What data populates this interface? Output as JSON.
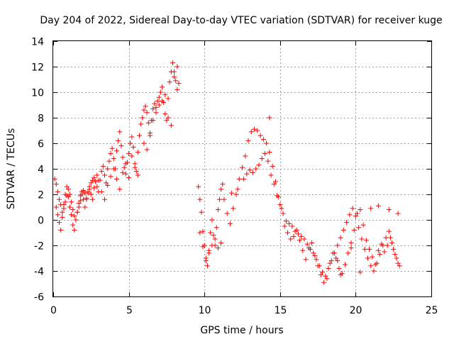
{
  "chart_data": {
    "type": "scatter",
    "title": "Day 204 of 2022, Sidereal Day-to-day VTEC variation (SDTVAR) for receiver kuge",
    "xlabel": "GPS time / hours",
    "ylabel": "SDTVAR / TECUs",
    "xlim": [
      0,
      25
    ],
    "ylim": [
      -6,
      14
    ],
    "grid": true,
    "marker": "+",
    "color": "#ff0000",
    "x_ticks": [
      0,
      5,
      10,
      15,
      20,
      25
    ],
    "y_ticks": [
      -6,
      -4,
      -2,
      0,
      2,
      4,
      6,
      8,
      10,
      12,
      14
    ],
    "series": [
      {
        "name": "SDTVAR",
        "x": [
          0.1,
          0.2,
          0.3,
          0.4,
          0.5,
          0.6,
          0.7,
          0.8,
          0.9,
          1.0,
          1.1,
          1.2,
          1.3,
          1.4,
          1.5,
          1.6,
          1.7,
          1.8,
          1.9,
          2.0,
          2.1,
          2.2,
          2.3,
          2.4,
          2.5,
          2.6,
          2.7,
          2.8,
          2.9,
          3.0,
          3.1,
          3.2,
          3.3,
          3.4,
          3.5,
          3.6,
          3.7,
          3.8,
          3.9,
          4.0,
          4.1,
          4.2,
          4.3,
          4.4,
          4.5,
          4.6,
          4.7,
          4.8,
          4.9,
          5.0,
          5.1,
          5.2,
          5.3,
          5.4,
          5.5,
          5.6,
          5.7,
          5.8,
          5.9,
          6.0,
          6.1,
          6.2,
          6.3,
          6.4,
          6.5,
          6.6,
          6.7,
          6.8,
          6.9,
          7.0,
          7.1,
          7.2,
          7.3,
          7.4,
          7.5,
          7.6,
          7.7,
          7.8,
          7.9,
          8.0,
          8.1,
          8.2,
          8.3,
          0.2,
          0.3,
          0.4,
          0.5,
          0.6,
          0.7,
          0.8,
          0.9,
          1.0,
          1.1,
          1.2,
          1.3,
          1.4,
          1.5,
          1.6,
          1.7,
          1.8,
          1.9,
          2.0,
          2.1,
          2.2,
          2.3,
          2.4,
          2.5,
          2.6,
          2.7,
          2.8,
          2.9,
          3.0,
          3.2,
          3.4,
          3.6,
          3.8,
          4.0,
          4.2,
          4.4,
          4.6,
          4.8,
          5.0,
          5.2,
          5.4,
          5.6,
          6.0,
          6.2,
          6.4,
          6.6,
          6.8,
          7.0,
          7.2,
          7.4,
          7.6,
          7.8,
          8.0,
          8.2,
          9.6,
          9.7,
          9.8,
          9.9,
          10.0,
          10.1,
          10.2,
          10.3,
          10.4,
          10.5,
          10.6,
          10.7,
          10.8,
          10.9,
          11.0,
          11.1,
          11.2,
          11.3,
          11.5,
          11.7,
          11.9,
          12.1,
          12.3,
          12.5,
          12.7,
          12.9,
          13.1,
          13.3,
          13.5,
          13.7,
          13.9,
          14.1,
          14.3,
          14.5,
          14.7,
          14.9,
          15.1,
          15.3,
          15.5,
          15.7,
          15.9,
          16.1,
          16.3,
          16.5,
          16.7,
          16.9,
          17.1,
          17.3,
          17.5,
          17.7,
          17.9,
          18.1,
          18.3,
          18.5,
          18.7,
          18.9,
          19.1,
          19.3,
          19.5,
          19.7,
          19.9,
          20.1,
          20.3,
          20.5,
          20.7,
          20.9,
          21.1,
          21.3,
          21.5,
          21.7,
          21.9,
          22.1,
          22.3,
          22.5,
          22.7,
          22.9,
          9.7,
          9.9,
          10.1,
          10.3,
          10.5,
          10.7,
          10.9,
          11.1,
          12.6,
          12.8,
          13.0,
          13.2,
          13.4,
          13.6,
          13.8,
          14.0,
          14.2,
          14.4,
          14.6,
          14.8,
          15.0,
          15.2,
          15.4,
          15.6,
          15.8,
          16.0,
          16.2,
          16.4,
          16.6,
          16.8,
          17.0,
          17.2,
          17.4,
          17.6,
          17.8,
          18.0,
          18.2,
          18.4,
          18.6,
          18.8,
          19.0,
          19.2,
          19.4,
          19.6,
          19.8,
          20.0,
          20.2,
          20.4,
          20.6,
          20.8,
          21.0,
          21.2,
          21.4,
          21.6,
          21.8,
          22.0,
          22.2,
          22.4,
          22.6,
          22.8,
          14.3,
          12.2,
          11.8,
          18.8,
          19.0,
          20.3,
          21.0,
          22.2,
          22.8,
          21.5,
          19.7
        ],
        "y": [
          3.2,
          2.8,
          2.2,
          1.6,
          1.2,
          0.6,
          0.9,
          1.4,
          1.9,
          2.4,
          2.0,
          1.4,
          0.8,
          0.3,
          0.0,
          0.6,
          1.0,
          1.5,
          2.0,
          2.3,
          2.1,
          1.7,
          2.2,
          2.6,
          2.9,
          3.1,
          3.3,
          3.0,
          2.6,
          2.2,
          3.1,
          3.8,
          4.2,
          3.5,
          2.9,
          4.0,
          4.6,
          5.2,
          5.6,
          4.8,
          4.0,
          5.4,
          6.2,
          6.9,
          5.8,
          4.9,
          4.1,
          3.6,
          4.5,
          5.2,
          6.0,
          6.5,
          5.7,
          4.4,
          3.8,
          5.3,
          6.6,
          7.5,
          8.0,
          8.6,
          8.9,
          8.4,
          7.6,
          6.8,
          7.8,
          8.7,
          9.1,
          8.8,
          9.3,
          9.6,
          10.0,
          10.4,
          9.2,
          8.3,
          7.8,
          9.5,
          10.8,
          11.6,
          12.3,
          11.6,
          10.9,
          10.2,
          10.7,
          1.0,
          0.4,
          -0.2,
          -0.8,
          0.2,
          1.2,
          2.0,
          2.6,
          1.8,
          1.0,
          0.4,
          -0.4,
          -0.8,
          0.0,
          0.6,
          1.3,
          1.9,
          2.2,
          1.6,
          1.0,
          1.6,
          2.1,
          2.4,
          2.0,
          1.6,
          2.5,
          3.0,
          3.5,
          3.1,
          2.2,
          1.6,
          2.7,
          3.4,
          4.0,
          3.2,
          2.4,
          3.7,
          4.4,
          3.3,
          5.0,
          4.1,
          3.5,
          6.0,
          5.5,
          6.6,
          7.8,
          8.4,
          9.0,
          9.3,
          9.8,
          8.0,
          7.4,
          11.2,
          12.0,
          2.6,
          1.6,
          0.6,
          -0.9,
          -2.0,
          -3.2,
          -3.6,
          -2.4,
          -1.0,
          0.0,
          -1.2,
          -2.0,
          -0.6,
          0.8,
          1.6,
          2.4,
          2.8,
          1.6,
          0.5,
          -0.3,
          0.9,
          2.0,
          3.2,
          4.1,
          5.0,
          6.2,
          6.9,
          7.1,
          7.0,
          6.6,
          6.3,
          6.0,
          5.3,
          4.2,
          3.0,
          1.8,
          0.9,
          -0.5,
          -1.0,
          -1.5,
          -1.3,
          -0.8,
          -1.6,
          -2.4,
          -3.1,
          -2.2,
          -1.8,
          -2.8,
          -3.6,
          -4.3,
          -4.9,
          -4.6,
          -3.4,
          -2.6,
          -3.0,
          -3.8,
          -4.2,
          -3.5,
          -2.6,
          -1.8,
          -0.8,
          0.5,
          0.8,
          -0.4,
          -1.6,
          -2.3,
          -2.9,
          -3.5,
          -2.4,
          -1.9,
          -2.5,
          -2.0,
          -1.4,
          -2.3,
          -3.0,
          -3.6,
          -1.0,
          -2.1,
          -3.0,
          -2.6,
          -2.0,
          -1.5,
          -2.2,
          -1.8,
          3.2,
          3.6,
          3.9,
          3.7,
          4.0,
          4.3,
          4.8,
          5.2,
          4.6,
          3.5,
          2.8,
          1.9,
          1.2,
          0.5,
          -0.1,
          -0.3,
          -0.5,
          -0.9,
          -1.1,
          -1.3,
          -1.5,
          -1.9,
          -2.3,
          -2.6,
          -3.1,
          -3.6,
          -4.1,
          -4.4,
          -3.8,
          -3.2,
          -2.6,
          -2.0,
          -1.4,
          -0.8,
          -0.2,
          0.4,
          0.9,
          0.3,
          -0.6,
          -1.5,
          -2.3,
          -3.0,
          -3.6,
          -4.0,
          -3.4,
          -2.7,
          -2.0,
          -1.4,
          -0.9,
          -1.8,
          -2.7,
          -3.4,
          8.0,
          2.4,
          2.1,
          -3.2,
          -4.3,
          -4.1,
          0.9,
          0.8,
          0.5,
          1.1,
          -2.2
        ]
      }
    ]
  }
}
